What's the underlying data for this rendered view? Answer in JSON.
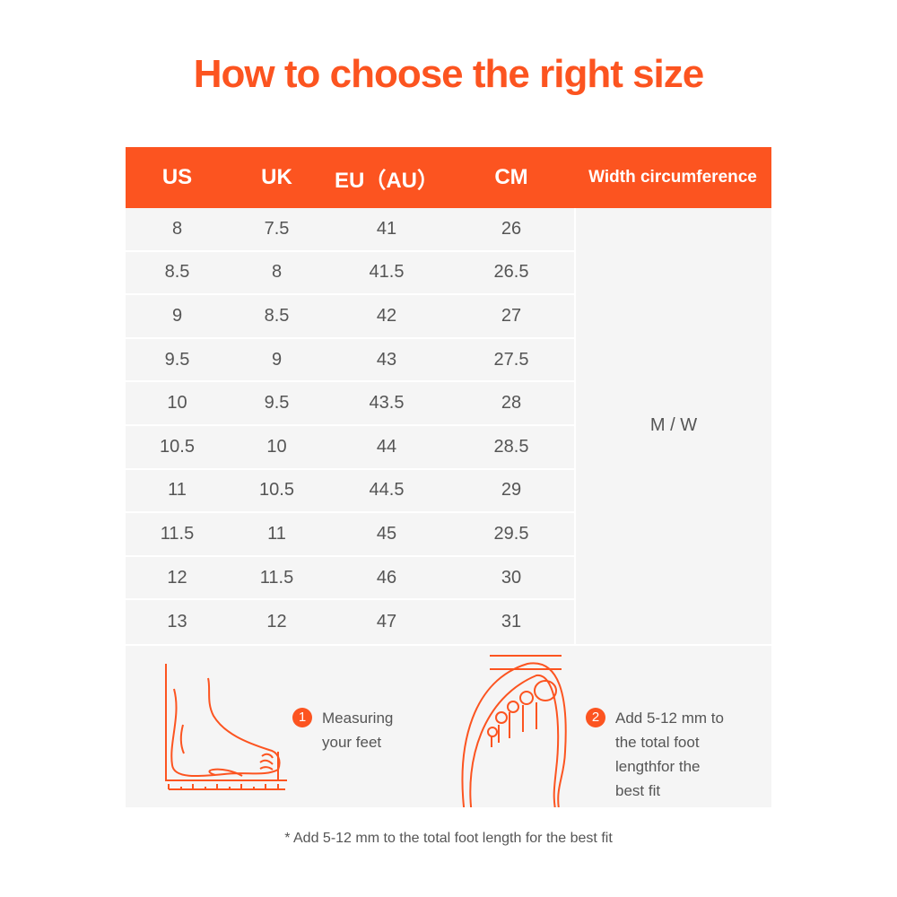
{
  "title": "How to choose the right size",
  "headers": [
    "US",
    "UK",
    "EU（AU）",
    "CM",
    "Width circumference"
  ],
  "rows": [
    [
      "8",
      "7.5",
      "41",
      "26"
    ],
    [
      "8.5",
      "8",
      "41.5",
      "26.5"
    ],
    [
      "9",
      "8.5",
      "42",
      "27"
    ],
    [
      "9.5",
      "9",
      "43",
      "27.5"
    ],
    [
      "10",
      "9.5",
      "43.5",
      "28"
    ],
    [
      "10.5",
      "10",
      "44",
      "28.5"
    ],
    [
      "11",
      "10.5",
      "44.5",
      "29"
    ],
    [
      "11.5",
      "11",
      "45",
      "29.5"
    ],
    [
      "12",
      "11.5",
      "46",
      "30"
    ],
    [
      "13",
      "12",
      "47",
      "31"
    ]
  ],
  "width_value": "M / W",
  "steps": [
    {
      "num": "1",
      "text": "Measuring your feet"
    },
    {
      "num": "2",
      "text": "Add 5-12 mm to the total foot lengthfor the best fit"
    }
  ],
  "footnote": "* Add 5-12 mm to the total foot length for the best fit",
  "colors": {
    "accent": "#fc5420",
    "row_bg": "#f5f5f5"
  }
}
